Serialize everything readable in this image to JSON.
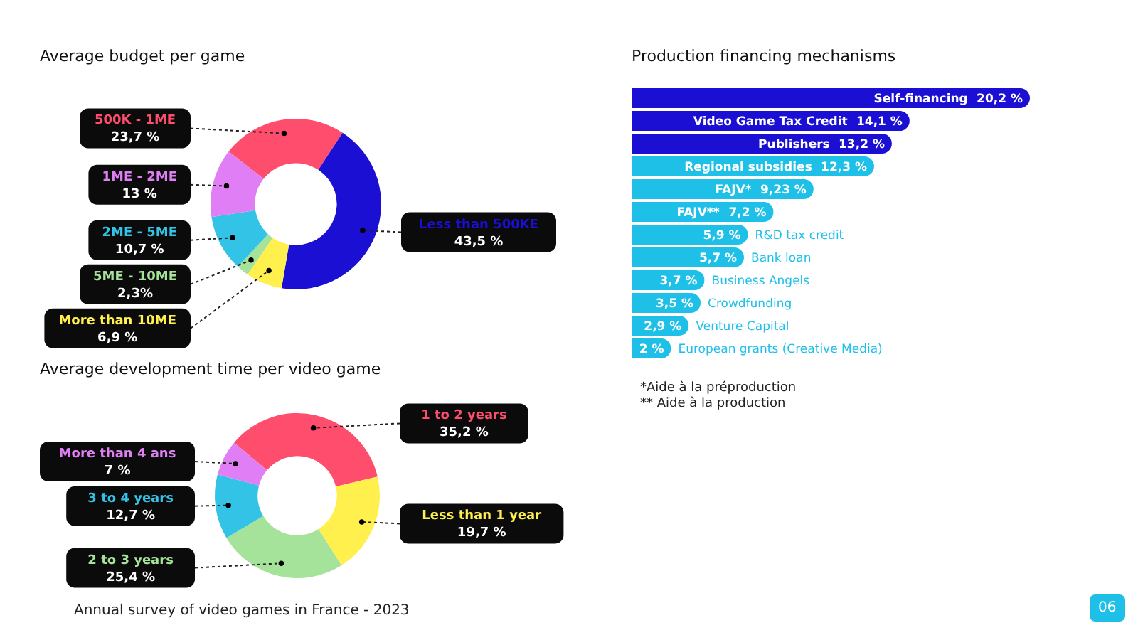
{
  "chart_data": [
    {
      "type": "donut",
      "title": "Average budget per game",
      "categories": [
        "500K - 1ME",
        "Less than 500KE",
        "More than 10ME",
        "5ME - 10ME",
        "2ME - 5ME",
        "1ME - 2ME"
      ],
      "values": [
        23.7,
        43.5,
        6.9,
        2.3,
        10.7,
        13
      ],
      "value_labels": [
        "23,7 %",
        "43,5 %",
        "6,9 %",
        "2,3%",
        "10,7 %",
        "13 %"
      ],
      "colors": [
        "#ff4d6d",
        "#1a0fd2",
        "#fff04d",
        "#a6e39a",
        "#33c3e6",
        "#e07ff5"
      ]
    },
    {
      "type": "donut",
      "title": "Average development time per video game",
      "categories": [
        "1 to 2 years",
        "Less than 1 year",
        "2 to 3 years",
        "3 to 4 years",
        "More than 4 ans"
      ],
      "values": [
        35.2,
        19.7,
        25.4,
        12.7,
        7
      ],
      "value_labels": [
        "35,2 %",
        "19,7 %",
        "25,4 %",
        "12,7 %",
        "7 %"
      ],
      "colors": [
        "#ff4d6d",
        "#fff04d",
        "#a6e39a",
        "#33c3e6",
        "#e07ff5"
      ],
      "annotations": [
        "Annual survey of video games in France - 2023"
      ]
    },
    {
      "type": "bar",
      "orientation": "horizontal",
      "title": "Production financing mechanisms",
      "categories": [
        "Self-financing",
        "Video Game Tax Credit",
        "Publishers",
        "Regional subsidies",
        "FAJV*",
        "FAJV**",
        "R&D tax credit",
        "Bank loan",
        "Business Angels",
        "Crowdfunding",
        "Venture Capital",
        "European grants (Creative Media)"
      ],
      "values": [
        20.2,
        14.1,
        13.2,
        12.3,
        9.23,
        7.2,
        5.9,
        5.7,
        3.7,
        3.5,
        2.9,
        2
      ],
      "value_labels": [
        "20,2 %",
        "14,1 %",
        "13,2 %",
        "12,3 %",
        "9,23 %",
        "7,2 %",
        "5,9 %",
        "5,7 %",
        "3,7 %",
        "3,5 %",
        "2,9 %",
        "2 %"
      ],
      "colors": [
        "#1a0fd2",
        "#1a0fd2",
        "#1a0fd2",
        "#1ec0e8",
        "#1ec0e8",
        "#1ec0e8",
        "#1ec0e8",
        "#1ec0e8",
        "#1ec0e8",
        "#1ec0e8",
        "#1ec0e8",
        "#1ec0e8"
      ],
      "xlim": [
        0,
        20.2
      ],
      "annotations": [
        "*Aide à la préproduction",
        "** Aide à la production",
        "06"
      ]
    }
  ]
}
